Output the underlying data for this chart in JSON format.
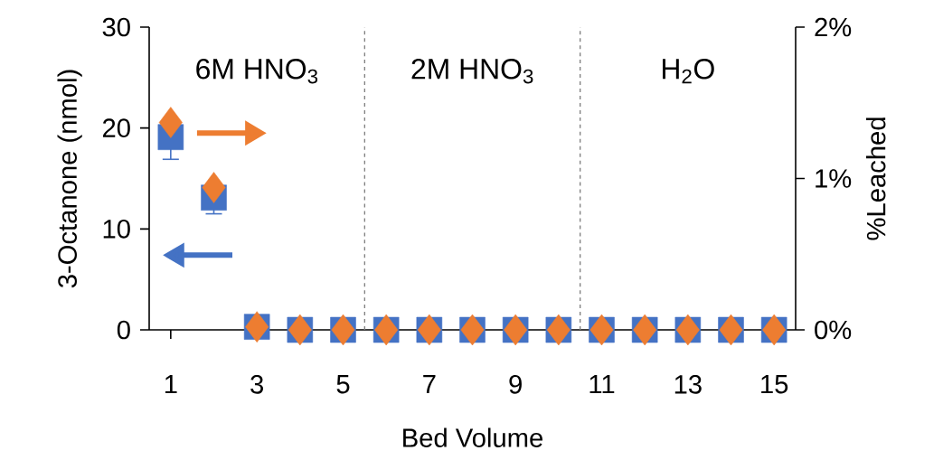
{
  "chart_data": {
    "type": "scatter",
    "xlabel": "Bed Volume",
    "ylabel": "3-Octanone (nmol)",
    "y2label": "%Leached",
    "x": [
      1,
      2,
      3,
      4,
      5,
      6,
      7,
      8,
      9,
      10,
      11,
      12,
      13,
      14,
      15
    ],
    "series": [
      {
        "color": "#4472c4",
        "marker": "square",
        "values": [
          19.1,
          13.1,
          0.3,
          0,
          0,
          0,
          0,
          0,
          0,
          0,
          0,
          0,
          0,
          0,
          0
        ],
        "errors": [
          2.2,
          1.6,
          null,
          null,
          null,
          null,
          null,
          null,
          null,
          null,
          null,
          null,
          null,
          null,
          null
        ]
      },
      {
        "color": "#ed7d31",
        "marker": "diamond",
        "axis": "y2",
        "values": [
          1.37,
          0.94,
          0.02,
          0,
          0,
          0,
          0,
          0,
          0,
          0,
          0,
          0,
          0,
          0,
          0
        ]
      }
    ],
    "xlim": [
      0.5,
      15.5
    ],
    "xticks": [
      1,
      3,
      5,
      7,
      9,
      11,
      13,
      15
    ],
    "ylim": [
      0,
      30
    ],
    "yticks": [
      0,
      10,
      20,
      30
    ],
    "y2lim": [
      0,
      2
    ],
    "y2ticks": [
      {
        "value": 0,
        "label": "0%"
      },
      {
        "value": 1,
        "label": "1%"
      },
      {
        "value": 2,
        "label": "2%"
      }
    ],
    "ref_lines": [
      {
        "axis": "x",
        "value": 5.5,
        "color": "#7f7f7f",
        "line_style": "dashed"
      },
      {
        "axis": "x",
        "value": 10.5,
        "color": "#7f7f7f",
        "line_style": "dashed"
      }
    ],
    "annotations": [
      "6M HNO$_{3}$",
      "2M HNO$_{3}$",
      "H$_{2}$O"
    ]
  }
}
